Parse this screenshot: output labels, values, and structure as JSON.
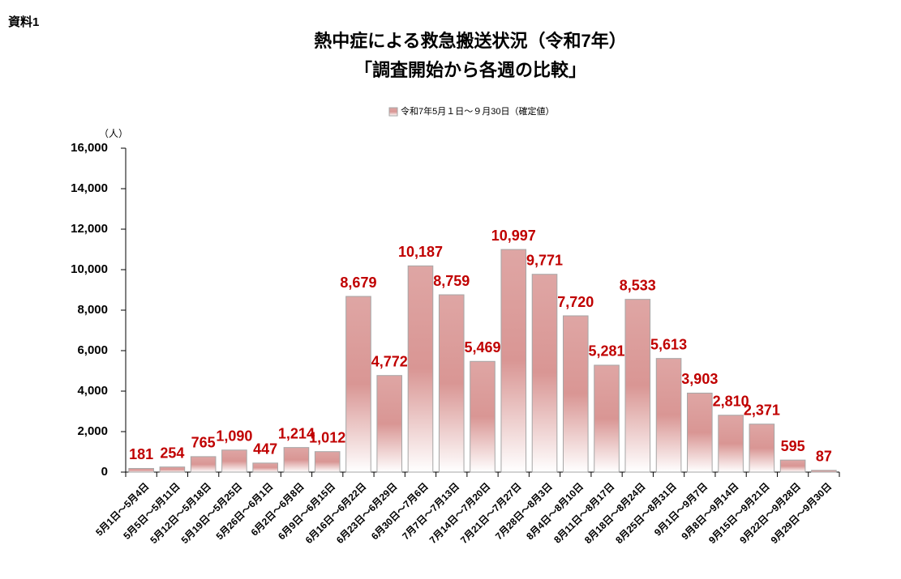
{
  "corner_label": "資料1",
  "chart_data": {
    "type": "bar",
    "title": "熱中症による救急搬送状況（令和7年）",
    "subtitle": "「調査開始から各週の比較」",
    "y_unit": "（人）",
    "categories": [
      "5月1日～5月4日",
      "5月5日～5月11日",
      "5月12日～5月18日",
      "5月19日～5月25日",
      "5月26日～6月1日",
      "6月2日～6月8日",
      "6月9日～6月15日",
      "6月16日～6月22日",
      "6月23日～6月29日",
      "6月30日～7月6日",
      "7月7日～7月13日",
      "7月14日～7月20日",
      "7月21日～7月27日",
      "7月28日～8月3日",
      "8月4日～8月10日",
      "8月11日～8月17日",
      "8月18日～8月24日",
      "8月25日～8月31日",
      "9月1日～9月7日",
      "9月8日～9月14日",
      "9月15日～9月21日",
      "9月22日～9月28日",
      "9月29日～9月30日"
    ],
    "series": [
      {
        "name": "令和7年5月１日～９月30日（確定値）",
        "color": "#d99694",
        "values": [
          181,
          254,
          765,
          1090,
          447,
          1214,
          1012,
          8679,
          4772,
          10187,
          8759,
          5469,
          10997,
          9771,
          7720,
          5281,
          8533,
          5613,
          3903,
          2810,
          2371,
          595,
          87
        ],
        "value_labels": [
          "181",
          "254",
          "765",
          "1,090",
          "447",
          "1,214",
          "1,012",
          "8,679",
          "4,772",
          "10,187",
          "8,759",
          "5,469",
          "10,997",
          "9,771",
          "7,720",
          "5,281",
          "8,533",
          "5,613",
          "3,903",
          "2,810",
          "2,371",
          "595",
          "87"
        ]
      }
    ],
    "ylim": [
      0,
      16000
    ],
    "yticks": [
      0,
      {
        "value": 2000,
        "label": "2,000"
      },
      {
        "value": 4000,
        "label": "4,000"
      },
      {
        "value": 6000,
        "label": "6,000"
      },
      {
        "value": 8000,
        "label": "8,000"
      },
      {
        "value": 10000,
        "label": "10,000"
      },
      {
        "value": 12000,
        "label": "12,000"
      },
      {
        "value": 14000,
        "label": "14,000"
      },
      {
        "value": 16000,
        "label": "16,000"
      }
    ],
    "grid": false,
    "legend_position": "top"
  }
}
